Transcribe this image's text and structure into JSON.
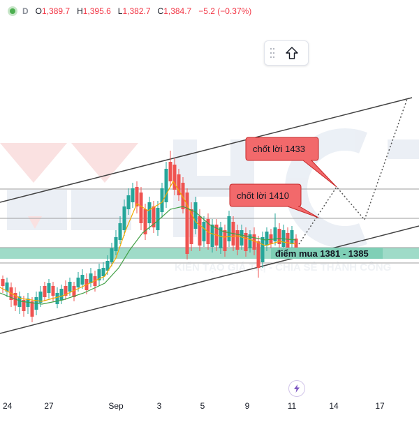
{
  "legend": {
    "resolution": "D",
    "open_label": "O",
    "open": "1,389.7",
    "high_label": "H",
    "high": "1,395.6",
    "low_label": "L",
    "low": "1,382.7",
    "close_label": "C",
    "close": "1,384.7",
    "change": "−5.2 (−0.37%)",
    "status_color": "#4caf50"
  },
  "toolbar": {
    "grip_icon": "drag-grip-icon",
    "action_icon": "arrow-up-icon"
  },
  "annotations": {
    "target1": "chốt lời 1433",
    "target2": "chốt lời 1410",
    "buy_zone": "điểm mua 1381 - 1385"
  },
  "watermark": {
    "letters": "HCT",
    "slogan": "KIẾN TẠO GIÁ TRỊ - CHIA SẺ THÀNH CÔNG"
  },
  "xaxis": {
    "ticks": [
      "24",
      "27",
      "Sep",
      "3",
      "5",
      "9",
      "11",
      "14",
      "17"
    ]
  },
  "colors": {
    "up": "#26a69a",
    "down": "#ef5350",
    "callout": "#f2696b",
    "zone": "#7fcfb6",
    "ma_fast": "#f2a900",
    "ma_slow": "#43a047"
  },
  "chart_data": {
    "type": "candlestick",
    "symbol_resolution": "D",
    "last_ohlc": {
      "open": 1389.7,
      "high": 1395.6,
      "low": 1382.7,
      "close": 1384.7,
      "change": -5.2,
      "change_pct": -0.37
    },
    "x_ticks": [
      "24",
      "27",
      "Sep",
      "3",
      "5",
      "9",
      "11",
      "14",
      "17"
    ],
    "horizontal_levels": [
      1433,
      1410,
      1385,
      1381
    ],
    "annotations": [
      "chốt lời 1433",
      "chốt lời 1410",
      "điểm mua 1381 - 1385"
    ]
  }
}
